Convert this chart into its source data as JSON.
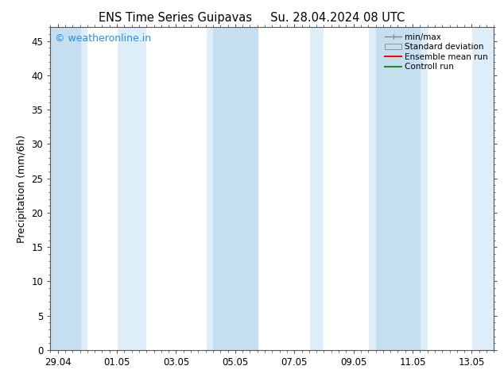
{
  "title_left": "ENS Time Series Guipavas",
  "title_right": "Su. 28.04.2024 08 UTC",
  "ylabel": "Precipitation (mm/6h)",
  "xlabel": "",
  "background_color": "#ffffff",
  "plot_bg_color": "#ddeef8",
  "ylim": [
    0,
    47
  ],
  "yticks": [
    0,
    5,
    10,
    15,
    20,
    25,
    30,
    35,
    40,
    45
  ],
  "xtick_labels": [
    "29.04",
    "01.05",
    "03.05",
    "05.05",
    "07.05",
    "09.05",
    "11.05",
    "13.05"
  ],
  "xtick_positions": [
    0.0,
    2.0,
    4.0,
    6.0,
    8.0,
    10.0,
    12.0,
    14.0
  ],
  "xlim": [
    -0.25,
    14.75
  ],
  "shaded_bands": [
    {
      "x_start": 1.0,
      "x_end": 2.0,
      "color": "#ffffff"
    },
    {
      "x_start": 3.0,
      "x_end": 5.0,
      "color": "#ffffff"
    },
    {
      "x_start": 6.5,
      "x_end": 8.5,
      "color": "#ffffff"
    },
    {
      "x_start": 9.0,
      "x_end": 10.5,
      "color": "#ffffff"
    },
    {
      "x_start": 12.5,
      "x_end": 14.0,
      "color": "#ffffff"
    }
  ],
  "darker_bands": [
    {
      "x_start": -0.25,
      "x_end": 0.75,
      "color": "#c5dff0"
    },
    {
      "x_start": 5.25,
      "x_end": 6.75,
      "color": "#c5dff0"
    },
    {
      "x_start": 10.75,
      "x_end": 12.25,
      "color": "#c5dff0"
    }
  ],
  "legend_items": [
    {
      "label": "min/max",
      "type": "hline",
      "color": "#888888"
    },
    {
      "label": "Standard deviation",
      "type": "fill",
      "color": "#ccddee"
    },
    {
      "label": "Ensemble mean run",
      "type": "line",
      "color": "#ff0000"
    },
    {
      "label": "Controll run",
      "type": "line",
      "color": "#228b22"
    }
  ],
  "watermark_text": "© weatheronline.in",
  "watermark_color": "#1e90ff",
  "watermark_fontsize": 9,
  "title_fontsize": 10.5,
  "axis_fontsize": 9,
  "tick_fontsize": 8.5,
  "legend_fontsize": 7.5
}
